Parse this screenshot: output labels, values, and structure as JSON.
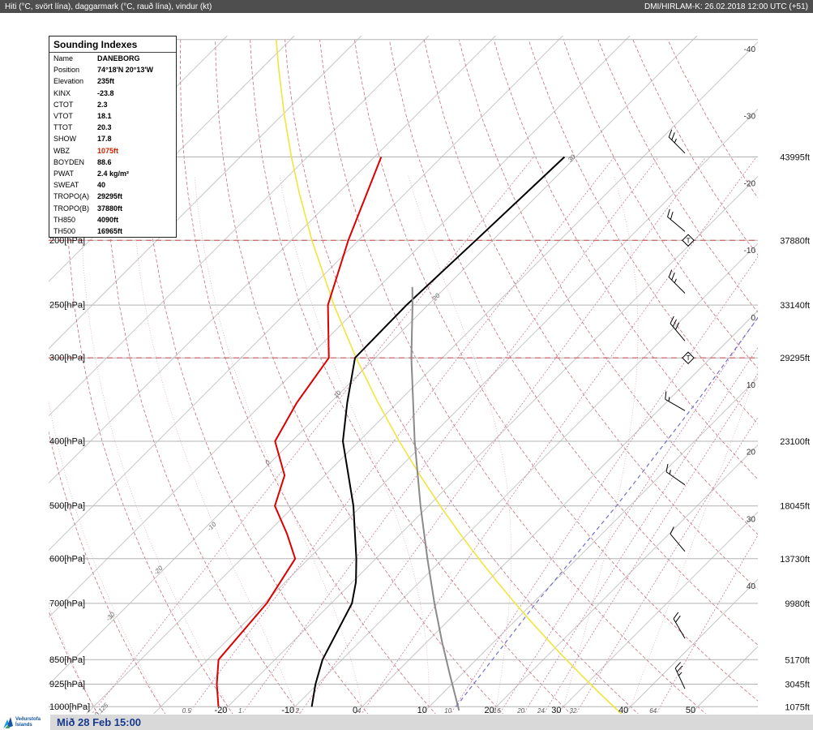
{
  "top_bar": {
    "left": "Hiti (°C, svört lína), daggarmark (°C, rauð lína), vindur (kt)",
    "right": "DMI/HIRLAM-K: 26.02.2018 12:00 UTC (+51)"
  },
  "footer": {
    "timestamp": "Mið 28 Feb 15:00",
    "logo_line1": "Veðurstofa",
    "logo_line2": "Íslands"
  },
  "indexes": {
    "title": "Sounding Indexes",
    "rows": [
      {
        "label": "Name",
        "value": "DANEBORG"
      },
      {
        "label": "Position",
        "value": "74°18'N 20°13'W"
      },
      {
        "label": "Elevation",
        "value": "235ft"
      },
      {
        "label": "KINX",
        "value": "-23.8"
      },
      {
        "label": "CTOT",
        "value": "2.3"
      },
      {
        "label": "VTOT",
        "value": "18.1"
      },
      {
        "label": "TTOT",
        "value": "20.3"
      },
      {
        "label": "SHOW",
        "value": "17.8"
      },
      {
        "label": "WBZ",
        "value": "1075ft",
        "red": true
      },
      {
        "label": "BOYDEN",
        "value": "88.6"
      },
      {
        "label": "PWAT",
        "value": "2.4 kg/m²"
      },
      {
        "label": "SWEAT",
        "value": "40"
      },
      {
        "label": "TROPO(A)",
        "value": "29295ft"
      },
      {
        "label": "TROPO(B)",
        "value": "37880ft"
      },
      {
        "label": "TH850",
        "value": "4090ft"
      },
      {
        "label": "TH500",
        "value": "16965ft"
      }
    ]
  },
  "colors": {
    "temperature": "#000000",
    "dewpoint": "#dd0000",
    "standard_atmosphere": "#8a8a8a",
    "parcel_yellow": "#f3e43c",
    "blue_reference": "#7070cc",
    "isotherm_grid": "#c7c7c7",
    "dry_adiabat": "#c4707a",
    "moist_adiabat": "#dcaab6",
    "mixing_ratio": "#c87a9e",
    "pressure_line": "#b3b3b3",
    "tropopause_line": "#d06060",
    "wbz_value": "#cc2200"
  },
  "chart_data": {
    "type": "line",
    "diagram": "skew-t-log-p",
    "station": "DANEBORG",
    "pressure_gridlines_hpa": [
      100,
      150,
      200,
      250,
      300,
      400,
      500,
      600,
      700,
      850,
      925,
      1000
    ],
    "pressure_axis_labels": [
      {
        "p": 200,
        "label": "200[hPa]"
      },
      {
        "p": 250,
        "label": "250[hPa]"
      },
      {
        "p": 300,
        "label": "300[hPa]"
      },
      {
        "p": 400,
        "label": "400[hPa]"
      },
      {
        "p": 500,
        "label": "500[hPa]"
      },
      {
        "p": 600,
        "label": "600[hPa]"
      },
      {
        "p": 700,
        "label": "700[hPa]"
      },
      {
        "p": 850,
        "label": "850[hPa]"
      },
      {
        "p": 925,
        "label": "925[hPa]"
      },
      {
        "p": 1000,
        "label": "1000[hPa]"
      }
    ],
    "altitude_labels": [
      {
        "p": 150,
        "label": "43995ft"
      },
      {
        "p": 200,
        "label": "37880ft"
      },
      {
        "p": 250,
        "label": "33140ft"
      },
      {
        "p": 300,
        "label": "29295ft"
      },
      {
        "p": 400,
        "label": "23100ft"
      },
      {
        "p": 500,
        "label": "18045ft"
      },
      {
        "p": 600,
        "label": "13730ft"
      },
      {
        "p": 700,
        "label": "9980ft"
      },
      {
        "p": 850,
        "label": "5170ft"
      },
      {
        "p": 925,
        "label": "3045ft"
      },
      {
        "p": 1000,
        "label": "1075ft"
      }
    ],
    "isotherm_labels_right": [
      -40,
      -30,
      -20,
      -10,
      0,
      10,
      20,
      30,
      40
    ],
    "isotherm_labels_bottom": [
      -20,
      -10,
      0,
      10,
      20,
      30,
      40,
      50
    ],
    "mixing_ratio_lines_gkg": [
      0.125,
      0.5,
      1,
      2,
      4,
      10,
      16,
      20,
      24,
      32,
      64
    ],
    "mixing_ratio_bottom_labels": [
      0.5,
      1,
      2,
      4,
      10,
      16,
      20,
      24,
      32,
      64
    ],
    "rotated_labels": [
      {
        "label": "0.125",
        "x": 127,
        "y": 877
      },
      {
        "label": "-30",
        "x": 138,
        "y": 762
      },
      {
        "label": "-20",
        "x": 197,
        "y": 705
      },
      {
        "label": "-10",
        "x": 263,
        "y": 651
      },
      {
        "label": "0",
        "x": 332,
        "y": 572
      },
      {
        "label": "10",
        "x": 418,
        "y": 488
      },
      {
        "label": "20",
        "x": 540,
        "y": 368
      },
      {
        "label": "30",
        "x": 707,
        "y": 197
      }
    ],
    "isotherms_c": {
      "min": -120,
      "max": 60,
      "step": 10
    },
    "dry_adiabats_c": {
      "min": -40,
      "max": 150,
      "step": 10
    },
    "moist_adiabats_c": {
      "min": -40,
      "max": 40,
      "step": 10
    },
    "tropopauses": [
      {
        "p": 200,
        "marker": "T"
      },
      {
        "p": 300,
        "marker": "T"
      }
    ],
    "series": [
      {
        "name": "temperature",
        "color": "#000000",
        "width": 2,
        "points": [
          [
            1000,
            -7.5
          ],
          [
            925,
            -10.3
          ],
          [
            850,
            -12.9
          ],
          [
            700,
            -16.9
          ],
          [
            650,
            -19.5
          ],
          [
            600,
            -22.9
          ],
          [
            500,
            -31.2
          ],
          [
            400,
            -42.4
          ],
          [
            350,
            -47.5
          ],
          [
            300,
            -53
          ],
          [
            250,
            -53.2
          ],
          [
            200,
            -52.5
          ],
          [
            150,
            -51.7
          ]
        ]
      },
      {
        "name": "dewpoint",
        "color": "#dd0000",
        "width": 2,
        "points": [
          [
            1000,
            -21.4
          ],
          [
            925,
            -25
          ],
          [
            850,
            -28.4
          ],
          [
            700,
            -29.6
          ],
          [
            600,
            -32
          ],
          [
            550,
            -37
          ],
          [
            500,
            -42.9
          ],
          [
            450,
            -46
          ],
          [
            400,
            -52.5
          ],
          [
            350,
            -55
          ],
          [
            300,
            -56.9
          ],
          [
            250,
            -64.9
          ],
          [
            200,
            -71.5
          ],
          [
            150,
            -79
          ]
        ]
      },
      {
        "name": "standard-atmosphere",
        "color": "#8a8a8a",
        "width": 2,
        "points": [
          [
            1013,
            15
          ],
          [
            900,
            8.6
          ],
          [
            800,
            2.3
          ],
          [
            700,
            -4.6
          ],
          [
            600,
            -12.3
          ],
          [
            500,
            -21.2
          ],
          [
            400,
            -31.7
          ],
          [
            300,
            -44.6
          ],
          [
            250,
            -52.3
          ],
          [
            235,
            -55
          ]
        ]
      },
      {
        "name": "blue-reference",
        "color": "#7070cc",
        "width": 1.2,
        "dash": "5,4",
        "points": [
          [
            1000,
            14
          ],
          [
            700,
            10.5
          ],
          [
            500,
            8
          ],
          [
            350,
            4.5
          ],
          [
            260,
            1
          ]
        ]
      }
    ],
    "parcel_line": {
      "name": "dry-adiabat-highlight",
      "theta_c": 37.5,
      "color": "#f3e43c",
      "width": 1.6
    },
    "wind_barbs": [
      {
        "p": 148,
        "kt": 25,
        "dir": 315
      },
      {
        "p": 194,
        "kt": 20,
        "dir": 310
      },
      {
        "p": 240,
        "kt": 25,
        "dir": 315
      },
      {
        "p": 283,
        "kt": 30,
        "dir": 320
      },
      {
        "p": 360,
        "kt": 15,
        "dir": 300
      },
      {
        "p": 465,
        "kt": 15,
        "dir": 305
      },
      {
        "p": 585,
        "kt": 10,
        "dir": 320
      },
      {
        "p": 790,
        "kt": 20,
        "dir": 330
      },
      {
        "p": 940,
        "kt": 25,
        "dir": 335
      }
    ]
  }
}
